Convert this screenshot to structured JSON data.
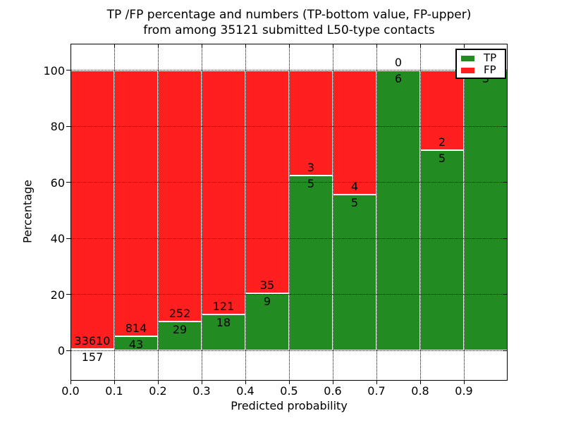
{
  "chart_data": {
    "type": "bar",
    "stacked": true,
    "title_line1": "TP /FP percentage and numbers (TP-bottom value, FP-upper)",
    "title_line2": "from among 35121 submitted L50-type contacts",
    "xlabel": "Predicted probability",
    "ylabel": "Percentage",
    "x_tick_labels": [
      "0.0",
      "0.1",
      "0.2",
      "0.3",
      "0.4",
      "0.5",
      "0.6",
      "0.7",
      "0.8",
      "0.9"
    ],
    "y_tick_values": [
      0,
      20,
      40,
      60,
      80,
      100
    ],
    "y_tick_labels": [
      "0",
      "20",
      "40",
      "60",
      "80",
      "100"
    ],
    "bin_edges": [
      0.0,
      0.1,
      0.2,
      0.3,
      0.4,
      0.5,
      0.6,
      0.7,
      0.8,
      0.9,
      1.0
    ],
    "xlim": [
      0.0,
      1.0
    ],
    "ylim_percent": [
      -11,
      110
    ],
    "grid_style": "dotted",
    "bars_are_percent_of_bin_total": true,
    "series": [
      {
        "name": "TP",
        "color": "#228b22",
        "position": "bottom",
        "values": [
          157,
          43,
          29,
          18,
          9,
          5,
          5,
          6,
          5,
          3
        ]
      },
      {
        "name": "FP",
        "color": "#ff1f1f",
        "position": "top",
        "values": [
          33610,
          814,
          252,
          121,
          35,
          3,
          4,
          0,
          2,
          0
        ]
      }
    ],
    "tp_percent_of_bin": [
      0.46,
      5.02,
      10.32,
      12.95,
      20.45,
      62.5,
      55.56,
      100.0,
      71.43,
      100.0
    ],
    "total_contacts_in_title": "35121",
    "legend": {
      "position": "upper-right",
      "entries": [
        {
          "label": "TP",
          "color": "#228b22"
        },
        {
          "label": "FP",
          "color": "#ff1f1f"
        }
      ]
    },
    "colors": {
      "background": "#ffffff",
      "bar_edge": "#ffffff",
      "grid": "#000000",
      "text": "#000000"
    }
  }
}
